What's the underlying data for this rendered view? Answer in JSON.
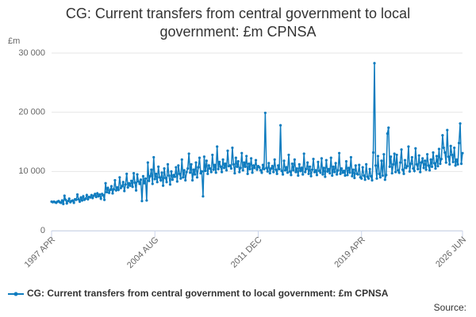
{
  "chart_data": {
    "type": "line",
    "title": "CG: Current transfers from central government to local government: £m CPNSA",
    "y_label": "£m",
    "source": "Source:",
    "categories": [
      "1997 APR",
      null,
      null,
      null,
      null,
      null,
      null,
      null,
      null,
      null,
      null,
      null,
      null,
      null,
      null,
      null,
      null,
      null,
      null,
      null,
      null,
      null,
      null,
      null,
      null,
      null,
      null,
      null,
      null,
      null,
      null,
      null,
      null,
      null,
      null,
      null,
      null,
      null,
      null,
      null,
      null,
      null,
      null,
      null,
      null,
      null,
      null,
      null,
      null,
      null,
      null,
      null,
      null,
      null,
      null,
      null,
      null,
      null,
      null,
      null,
      null,
      null,
      null,
      null,
      null,
      null,
      null,
      null,
      null,
      null,
      null,
      null,
      null,
      null,
      null,
      null,
      null,
      null,
      null,
      null,
      null,
      null,
      null,
      null,
      null,
      null,
      null,
      null,
      "2004 AUG",
      null,
      null,
      null,
      null,
      null,
      null,
      null,
      null,
      null,
      null,
      null,
      null,
      null,
      null,
      null,
      null,
      null,
      null,
      null,
      null,
      null,
      null,
      null,
      null,
      null,
      null,
      null,
      null,
      null,
      null,
      null,
      null,
      null,
      null,
      null,
      null,
      null,
      null,
      null,
      null,
      null,
      null,
      null,
      null,
      null,
      null,
      null,
      null,
      null,
      null,
      null,
      null,
      null,
      null,
      null,
      null,
      null,
      null,
      null,
      null,
      null,
      null,
      null,
      null,
      null,
      null,
      null,
      null,
      null,
      null,
      null,
      null,
      null,
      null,
      null,
      null,
      null,
      null,
      null,
      null,
      null,
      null,
      null,
      null,
      null,
      null,
      null,
      "2011 DEC",
      null,
      null,
      null,
      null,
      null,
      null,
      null,
      null,
      null,
      null,
      null,
      null,
      null,
      null,
      null,
      null,
      null,
      null,
      null,
      null,
      null,
      null,
      null,
      null,
      null,
      null,
      null,
      null,
      null,
      null,
      null,
      null,
      null,
      null,
      null,
      null,
      null,
      null,
      null,
      null,
      null,
      null,
      null,
      null,
      null,
      null,
      null,
      null,
      null,
      null,
      null,
      null,
      null,
      null,
      null,
      null,
      null,
      null,
      null,
      null,
      null,
      null,
      null,
      null,
      null,
      null,
      null,
      null,
      null,
      null,
      null,
      null,
      null,
      null,
      null,
      null,
      null,
      null,
      null,
      null,
      null,
      null,
      null,
      null,
      null,
      null,
      null,
      "2019 APR",
      null,
      null,
      null,
      null,
      null,
      null,
      null,
      null,
      null,
      null,
      null,
      null,
      null,
      null,
      null,
      null,
      null,
      null,
      null,
      null,
      null,
      null,
      null,
      null,
      null,
      null,
      null,
      null,
      null,
      null,
      null,
      null,
      null,
      null,
      null,
      null,
      null,
      null,
      null,
      null,
      null,
      null,
      null,
      null,
      null,
      null,
      null,
      null,
      null,
      null,
      null,
      null,
      null,
      null,
      null,
      null,
      null,
      null,
      null,
      null,
      null,
      null,
      null,
      null,
      null,
      null,
      null,
      null,
      null,
      null,
      null,
      null,
      null,
      null,
      null,
      null,
      null,
      null,
      null,
      null,
      null,
      null,
      null,
      null,
      null,
      "2026 JUN"
    ],
    "series": [
      {
        "name": "CG: Current transfers from central government to local government: £m CPNSA",
        "color": "#0f7cbf",
        "values": [
          4900,
          4800,
          4900,
          4800,
          4700,
          4900,
          5000,
          4800,
          4700,
          5100,
          4500,
          5900,
          5200,
          4600,
          5000,
          5400,
          4800,
          5000,
          5100,
          4700,
          5300,
          5200,
          6100,
          5300,
          4900,
          5600,
          5100,
          5800,
          5200,
          5400,
          6000,
          5300,
          5700,
          5600,
          6000,
          5500,
          5900,
          6200,
          5700,
          6300,
          5800,
          6100,
          5400,
          6200,
          6000,
          5200,
          8000,
          6500,
          7200,
          6400,
          6900,
          7500,
          6300,
          7000,
          8500,
          6800,
          7300,
          6900,
          9000,
          7200,
          7500,
          8200,
          6700,
          7800,
          9600,
          7300,
          8000,
          7600,
          8400,
          7400,
          9700,
          8100,
          6800,
          9500,
          8300,
          7900,
          8600,
          5000,
          9200,
          8000,
          8800,
          5100,
          11500,
          8400,
          9200,
          10300,
          7900,
          12400,
          8700,
          9600,
          8200,
          10800,
          9000,
          8500,
          9800,
          7600,
          10500,
          8900,
          8200,
          11200,
          9300,
          7800,
          10000,
          8600,
          9400,
          9100,
          10700,
          8300,
          11000,
          9600,
          8800,
          12000,
          9000,
          10200,
          8500,
          9900,
          10500,
          13000,
          9800,
          11200,
          8500,
          10300,
          9500,
          11500,
          9000,
          10700,
          12300,
          9700,
          10000,
          5800,
          12500,
          10100,
          11800,
          9600,
          11000,
          10500,
          9900,
          12800,
          10300,
          11100,
          9800,
          14200,
          10400,
          11600,
          10800,
          9900,
          12000,
          10600,
          11300,
          10200,
          13500,
          10900,
          11000,
          10500,
          14000,
          11200,
          9700,
          12300,
          10800,
          11700,
          9900,
          10600,
          13100,
          10200,
          11500,
          10800,
          12600,
          9600,
          11300,
          10400,
          12200,
          9800,
          11000,
          10600,
          11900,
          10300,
          10900,
          10700,
          10200,
          9800,
          11100,
          10400,
          19900,
          10600,
          10000,
          11400,
          9700,
          10500,
          10900,
          9900,
          12000,
          10300,
          9600,
          11000,
          10400,
          17800,
          10100,
          9500,
          11800,
          10200,
          10700,
          9800,
          12800,
          10000,
          9400,
          11300,
          10200,
          12000,
          9900,
          10500,
          9300,
          11200,
          10100,
          10600,
          9500,
          13000,
          9900,
          10400,
          11500,
          9600,
          10800,
          9200,
          10300,
          12100,
          9900,
          10200,
          9400,
          11600,
          10100,
          9800,
          12200,
          9500,
          10600,
          9100,
          11900,
          10000,
          10400,
          9700,
          12300,
          9300,
          10800,
          9900,
          11400,
          9500,
          10200,
          13100,
          9600,
          10500,
          9800,
          10100,
          9300,
          11700,
          9400,
          10600,
          9800,
          12400,
          9200,
          10300,
          8900,
          11000,
          9600,
          9500,
          11100,
          9000,
          8800,
          10700,
          9300,
          8600,
          11200,
          9100,
          8800,
          10400,
          9200,
          8500,
          13200,
          28300,
          11000,
          8800,
          12600,
          9600,
          9000,
          11800,
          9300,
          12900,
          8600,
          9400,
          16400,
          17400,
          10800,
          12500,
          9700,
          11200,
          13000,
          9900,
          12800,
          10200,
          9800,
          11500,
          13700,
          10300,
          9600,
          11900,
          10600,
          10900,
          14200,
          10000,
          11300,
          12400,
          10500,
          10100,
          13900,
          11200,
          10400,
          12700,
          9900,
          11500,
          12200,
          10600,
          11800,
          10300,
          12900,
          11000,
          10200,
          12000,
          10800,
          13200,
          11400,
          10500,
          12600,
          10900,
          13800,
          11300,
          12100,
          16100,
          14000,
          13200,
          11500,
          17000,
          12500,
          11200,
          14300,
          12800,
          11600,
          14000,
          11000,
          12000,
          11200,
          14800,
          18100,
          11300,
          13100
        ]
      }
    ],
    "ylim": [
      0,
      30000
    ],
    "yticks": [
      0,
      {
        "value": 10000,
        "label": "10 000"
      },
      {
        "value": 20000,
        "label": "20 000"
      },
      {
        "value": 30000,
        "label": "30 000"
      }
    ],
    "grid": true
  }
}
